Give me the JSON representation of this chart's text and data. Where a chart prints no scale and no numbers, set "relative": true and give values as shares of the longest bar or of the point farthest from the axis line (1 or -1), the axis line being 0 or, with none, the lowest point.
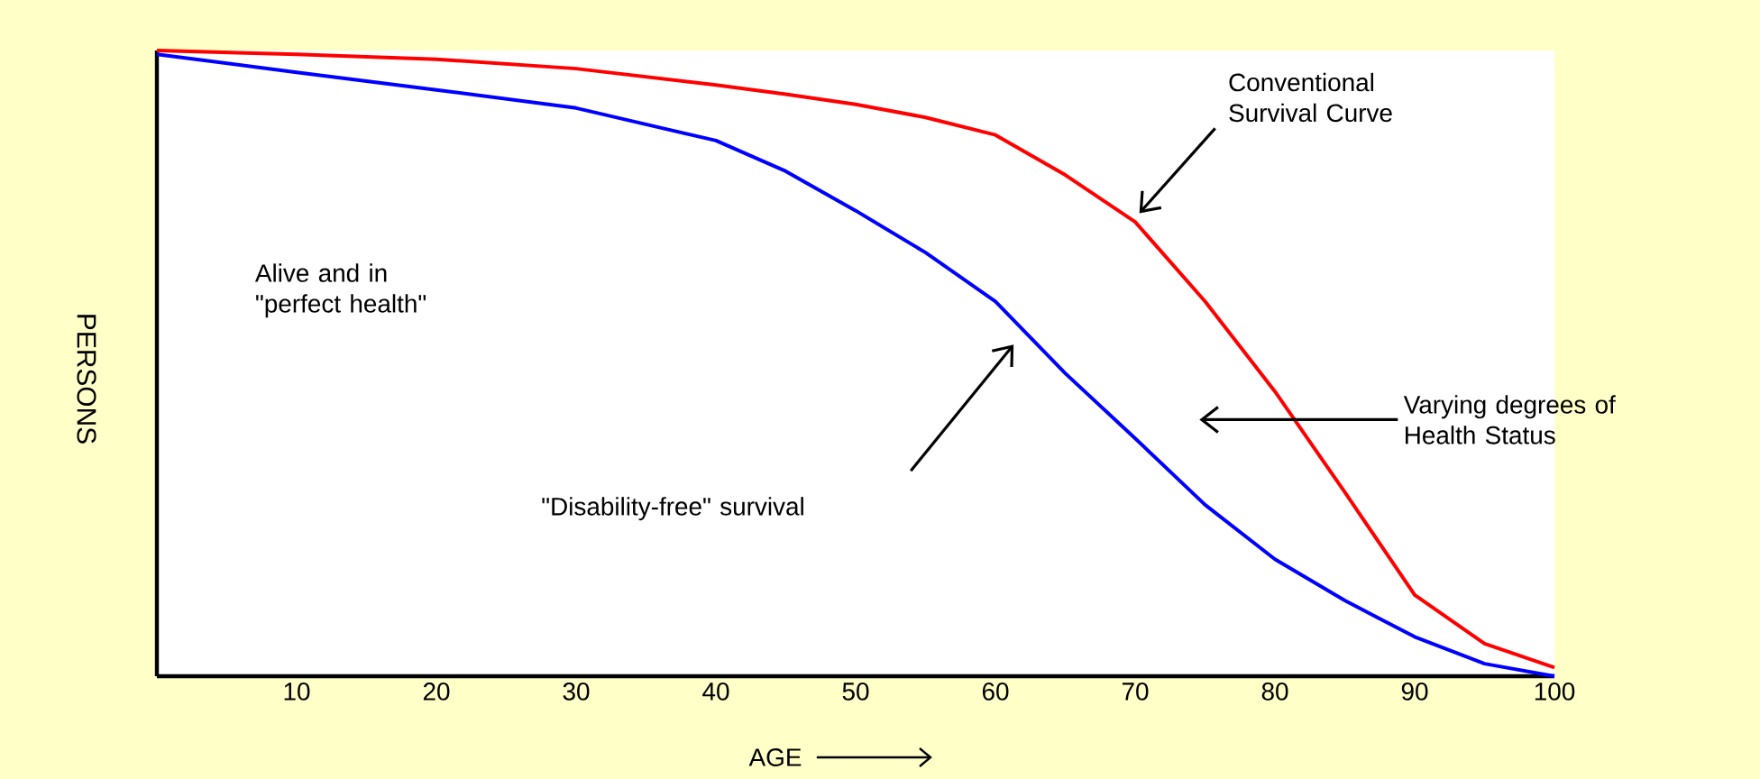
{
  "chart_data": {
    "type": "line",
    "relative": true,
    "xlabel": "AGE",
    "ylabel": "PERSONS",
    "xlim": [
      0,
      100
    ],
    "xticks": [
      10,
      20,
      30,
      40,
      50,
      60,
      70,
      80,
      90,
      100
    ],
    "x": [
      0,
      10,
      20,
      30,
      40,
      45,
      50,
      55,
      60,
      65,
      70,
      75,
      80,
      85,
      90,
      95,
      100
    ],
    "series": [
      {
        "color": "#ff0000",
        "values": [
          1.0,
          0.994,
          0.986,
          0.971,
          0.945,
          0.93,
          0.914,
          0.893,
          0.865,
          0.801,
          0.726,
          0.599,
          0.455,
          0.294,
          0.13,
          0.052,
          0.014
        ]
      },
      {
        "color": "#0000ff",
        "values": [
          0.994,
          0.965,
          0.937,
          0.908,
          0.856,
          0.807,
          0.744,
          0.677,
          0.599,
          0.484,
          0.38,
          0.274,
          0.187,
          0.121,
          0.063,
          0.02,
          0.0
        ]
      }
    ],
    "annotations": [
      "Alive and in \"perfect health\"",
      "Conventional Survival Curve",
      "Varying degrees of Health Status",
      "\"Disability-free\" survival"
    ]
  }
}
